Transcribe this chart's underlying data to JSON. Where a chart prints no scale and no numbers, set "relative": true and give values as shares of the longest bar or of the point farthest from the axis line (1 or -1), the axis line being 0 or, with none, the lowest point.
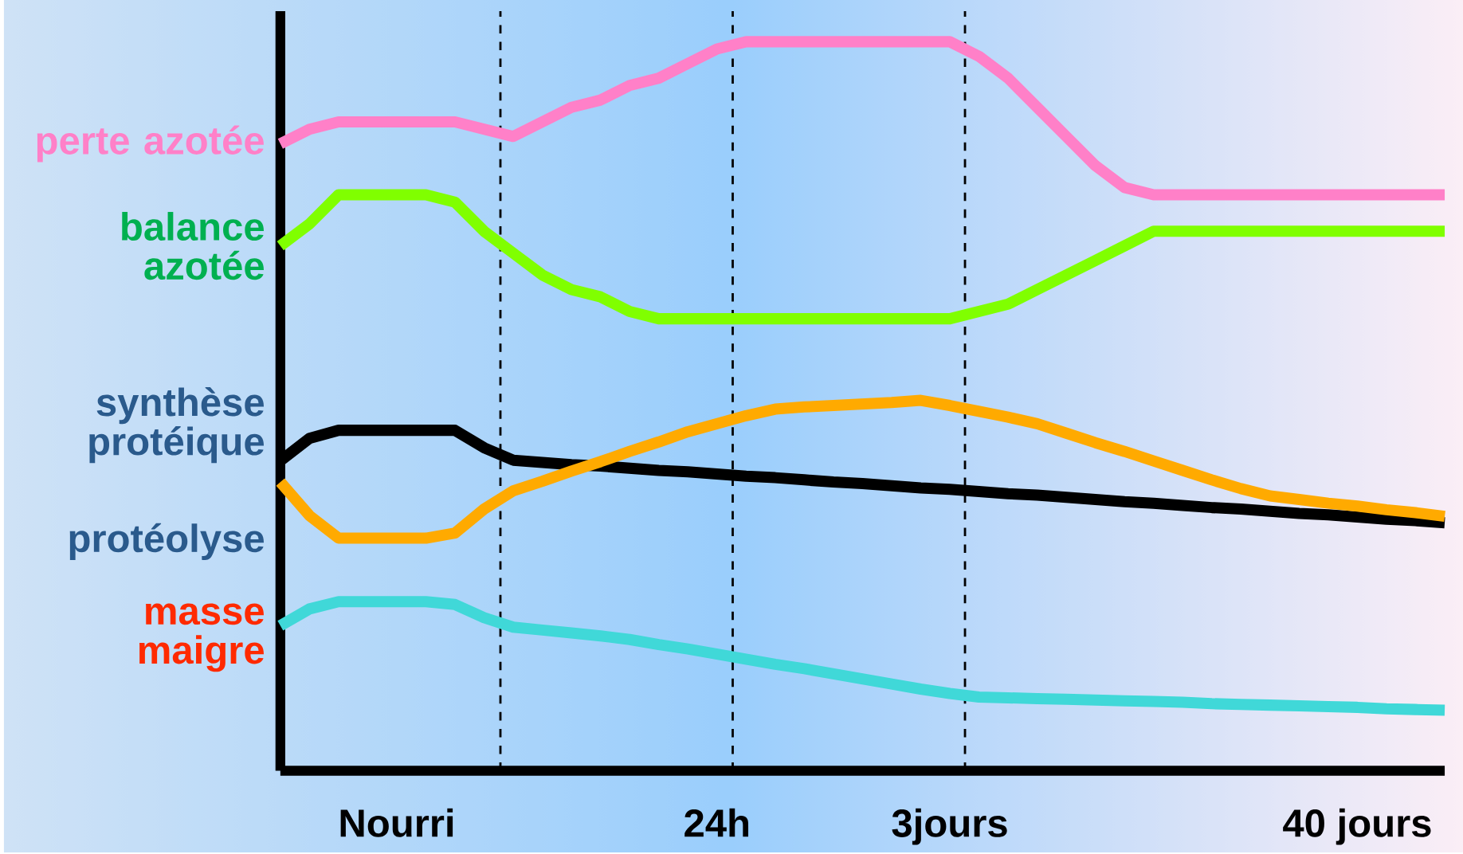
{
  "chart_data": {
    "type": "line",
    "relative": true,
    "categories": [
      null,
      null,
      null,
      null,
      "Nourri",
      null,
      null,
      null,
      null,
      null,
      null,
      null,
      null,
      null,
      null,
      "24h",
      null,
      null,
      null,
      null,
      null,
      null,
      null,
      "3jours",
      null,
      null,
      null,
      null,
      null,
      null,
      null,
      null,
      null,
      null,
      null,
      null,
      null,
      "40 jours",
      null,
      null,
      null
    ],
    "series": [
      {
        "name": "perte azotée",
        "color": "#ff80c8",
        "values": [
          0.86,
          0.88,
          0.89,
          0.89,
          0.89,
          0.89,
          0.89,
          0.88,
          0.87,
          0.89,
          0.91,
          0.92,
          0.94,
          0.95,
          0.97,
          0.99,
          1,
          1,
          1,
          1,
          1,
          1,
          1,
          1,
          0.98,
          0.95,
          0.91,
          0.87,
          0.83,
          0.8,
          0.79,
          0.79,
          0.79,
          0.79,
          0.79,
          0.79,
          0.79,
          0.79,
          0.79,
          0.79,
          0.79
        ]
      },
      {
        "name": "balance azotée",
        "color": "#80ff00",
        "values": [
          0.72,
          0.75,
          0.79,
          0.79,
          0.79,
          0.79,
          0.78,
          0.74,
          0.71,
          0.68,
          0.66,
          0.65,
          0.63,
          0.62,
          0.62,
          0.62,
          0.62,
          0.62,
          0.62,
          0.62,
          0.62,
          0.62,
          0.62,
          0.62,
          0.63,
          0.64,
          0.66,
          0.68,
          0.7,
          0.72,
          0.74,
          0.74,
          0.74,
          0.74,
          0.74,
          0.74,
          0.74,
          0.74,
          0.74,
          0.74,
          0.74
        ]
      },
      {
        "name": "synthèse protéique",
        "color": "#000000",
        "values": [
          0.425,
          0.456,
          0.467,
          0.467,
          0.467,
          0.467,
          0.467,
          0.443,
          0.426,
          0.423,
          0.42,
          0.418,
          0.415,
          0.412,
          0.41,
          0.407,
          0.404,
          0.402,
          0.399,
          0.396,
          0.394,
          0.391,
          0.388,
          0.386,
          0.383,
          0.38,
          0.378,
          0.375,
          0.372,
          0.369,
          0.367,
          0.364,
          0.361,
          0.359,
          0.356,
          0.353,
          0.351,
          0.348,
          0.345,
          0.343,
          0.34
        ]
      },
      {
        "name": "protéolyse",
        "color": "#ffaa00",
        "values": [
          0.396,
          0.35,
          0.319,
          0.319,
          0.319,
          0.319,
          0.326,
          0.359,
          0.384,
          0.397,
          0.411,
          0.424,
          0.438,
          0.451,
          0.465,
          0.476,
          0.487,
          0.496,
          0.499,
          0.501,
          0.503,
          0.505,
          0.508,
          0.501,
          0.493,
          0.485,
          0.476,
          0.463,
          0.45,
          0.438,
          0.425,
          0.412,
          0.399,
          0.387,
          0.377,
          0.372,
          0.367,
          0.363,
          0.358,
          0.354,
          0.349
        ]
      },
      {
        "name": "masse maigre",
        "color": "#40d8d8",
        "values": [
          0.199,
          0.222,
          0.232,
          0.232,
          0.232,
          0.232,
          0.228,
          0.21,
          0.197,
          0.193,
          0.189,
          0.185,
          0.18,
          0.173,
          0.167,
          0.16,
          0.153,
          0.146,
          0.14,
          0.133,
          0.126,
          0.119,
          0.112,
          0.106,
          0.101,
          0.1,
          0.099,
          0.098,
          0.097,
          0.096,
          0.095,
          0.094,
          0.092,
          0.091,
          0.09,
          0.089,
          0.088,
          0.087,
          0.085,
          0.084,
          0.083
        ]
      }
    ]
  }
}
